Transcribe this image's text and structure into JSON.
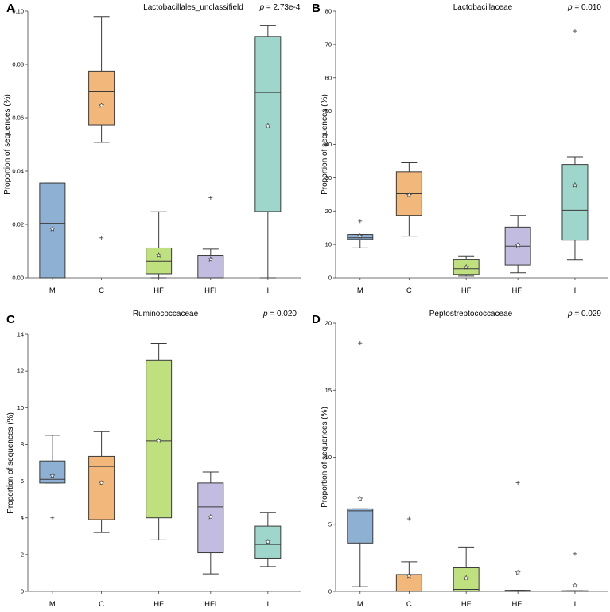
{
  "figure": {
    "categories": [
      "M",
      "C",
      "HF",
      "HFI",
      "I"
    ],
    "colors": {
      "M": "#8eb1d3",
      "C": "#f2b77a",
      "HF": "#bfe07f",
      "HFI": "#c2bce0",
      "I": "#9fd6cb"
    },
    "stroke": "#3a3a3a"
  },
  "chart_data": [
    {
      "type": "box",
      "panel": "A",
      "title": "Lactobacillales_unclassifield",
      "p_label": "p",
      "p_value": "= 2.73e-4",
      "ylabel": "Proportion of sequences (%)",
      "ylim": [
        0,
        0.1
      ],
      "yticks": [
        0,
        0.02,
        0.04,
        0.06,
        0.08,
        0.1
      ],
      "ytick_labels": [
        "0.00",
        "0.02",
        "0.04",
        "0.06",
        "0.08",
        "0.10"
      ],
      "categories": [
        "M",
        "C",
        "HF",
        "HFI",
        "I"
      ],
      "boxes": [
        {
          "name": "M",
          "whislo": 0.0,
          "q1": 0.0,
          "med": 0.0204,
          "q3": 0.0355,
          "whishi": 0.0355,
          "mean": 0.0183,
          "fliers": []
        },
        {
          "name": "C",
          "whislo": 0.0508,
          "q1": 0.0573,
          "med": 0.07,
          "q3": 0.0775,
          "whishi": 0.098,
          "mean": 0.0646,
          "fliers": [
            0.015
          ]
        },
        {
          "name": "HF",
          "whislo": 0.0,
          "q1": 0.0015,
          "med": 0.0062,
          "q3": 0.0112,
          "whishi": 0.0247,
          "mean": 0.0084,
          "fliers": []
        },
        {
          "name": "HFI",
          "whislo": 0.0,
          "q1": 0.0,
          "med": 0.0,
          "q3": 0.0082,
          "whishi": 0.0108,
          "mean": 0.0069,
          "fliers": [
            0.03
          ]
        },
        {
          "name": "I",
          "whislo": 0.0,
          "q1": 0.0248,
          "med": 0.0695,
          "q3": 0.0905,
          "whishi": 0.0945,
          "mean": 0.057,
          "fliers": []
        }
      ]
    },
    {
      "type": "box",
      "panel": "B",
      "title": "Lactobacillaceae",
      "p_label": "p",
      "p_value": "= 0.010",
      "ylabel": "Proportion of sequences (%)",
      "ylim": [
        0,
        80
      ],
      "yticks": [
        0,
        10,
        20,
        30,
        40,
        50,
        60,
        70,
        80
      ],
      "ytick_labels": [
        "0",
        "10",
        "20",
        "30",
        "40",
        "50",
        "60",
        "70",
        "80"
      ],
      "categories": [
        "M",
        "C",
        "HF",
        "HFI",
        "I"
      ],
      "boxes": [
        {
          "name": "M",
          "whislo": 9.0,
          "q1": 11.5,
          "med": 12.0,
          "q3": 13.0,
          "whishi": 13.0,
          "mean": 12.5,
          "fliers": [
            17.0
          ]
        },
        {
          "name": "C",
          "whislo": 12.5,
          "q1": 18.7,
          "med": 25.2,
          "q3": 31.8,
          "whishi": 34.5,
          "mean": 24.8,
          "fliers": []
        },
        {
          "name": "HF",
          "whislo": 0.5,
          "q1": 1.0,
          "med": 2.7,
          "q3": 5.4,
          "whishi": 6.4,
          "mean": 3.2,
          "fliers": []
        },
        {
          "name": "HFI",
          "whislo": 1.5,
          "q1": 3.8,
          "med": 9.5,
          "q3": 15.2,
          "whishi": 18.7,
          "mean": 9.8,
          "fliers": []
        },
        {
          "name": "I",
          "whislo": 5.3,
          "q1": 11.3,
          "med": 20.2,
          "q3": 34.0,
          "whishi": 36.3,
          "mean": 27.8,
          "fliers": [
            74.0
          ]
        }
      ]
    },
    {
      "type": "box",
      "panel": "C",
      "title": "Ruminococcaceae",
      "p_label": "p",
      "p_value": "= 0.020",
      "ylabel": "Proportion of sequences (%)",
      "ylim": [
        0,
        14
      ],
      "yticks": [
        0,
        2,
        4,
        6,
        8,
        10,
        12,
        14
      ],
      "ytick_labels": [
        "0",
        "2",
        "4",
        "6",
        "8",
        "10",
        "12",
        "14"
      ],
      "categories": [
        "M",
        "C",
        "HF",
        "HFI",
        "I"
      ],
      "boxes": [
        {
          "name": "M",
          "whislo": 5.9,
          "q1": 5.9,
          "med": 6.1,
          "q3": 7.1,
          "whishi": 8.5,
          "mean": 6.3,
          "fliers": [
            4.0
          ]
        },
        {
          "name": "C",
          "whislo": 3.2,
          "q1": 3.9,
          "med": 6.8,
          "q3": 7.35,
          "whishi": 8.7,
          "mean": 5.9,
          "fliers": []
        },
        {
          "name": "HF",
          "whislo": 2.8,
          "q1": 4.0,
          "med": 8.2,
          "q3": 12.6,
          "whishi": 13.5,
          "mean": 8.2,
          "fliers": []
        },
        {
          "name": "HFI",
          "whislo": 0.95,
          "q1": 2.1,
          "med": 4.6,
          "q3": 5.9,
          "whishi": 6.5,
          "mean": 4.05,
          "fliers": []
        },
        {
          "name": "I",
          "whislo": 1.35,
          "q1": 1.8,
          "med": 2.55,
          "q3": 3.55,
          "whishi": 4.3,
          "mean": 2.7,
          "fliers": []
        }
      ]
    },
    {
      "type": "box",
      "panel": "D",
      "title": "Peptostreptococcaceae",
      "p_label": "p",
      "p_value": "= 0.029",
      "ylabel": "Proportion of sequences (%)",
      "ylim": [
        0,
        20
      ],
      "yticks": [
        0,
        5,
        10,
        15,
        20
      ],
      "ytick_labels": [
        "0",
        "5",
        "10",
        "15",
        "20"
      ],
      "categories": [
        "M",
        "C",
        "HF",
        "HFI",
        "I"
      ],
      "boxes": [
        {
          "name": "M",
          "whislo": 0.35,
          "q1": 3.6,
          "med": 6.0,
          "q3": 6.15,
          "whishi": 6.15,
          "mean": 6.9,
          "fliers": [
            18.5
          ]
        },
        {
          "name": "C",
          "whislo": 0.0,
          "q1": 0.0,
          "med": 0.0,
          "q3": 1.25,
          "whishi": 2.2,
          "mean": 1.15,
          "fliers": [
            5.4
          ]
        },
        {
          "name": "HF",
          "whislo": 0.0,
          "q1": 0.0,
          "med": 0.15,
          "q3": 1.75,
          "whishi": 3.3,
          "mean": 1.0,
          "fliers": []
        },
        {
          "name": "HFI",
          "whislo": 0.0,
          "q1": 0.0,
          "med": 0.05,
          "q3": 0.08,
          "whishi": 0.08,
          "mean": 1.4,
          "fliers": [
            8.1
          ]
        },
        {
          "name": "I",
          "whislo": 0.0,
          "q1": 0.0,
          "med": 0.02,
          "q3": 0.05,
          "whishi": 0.05,
          "mean": 0.45,
          "fliers": [
            2.8
          ]
        }
      ]
    }
  ]
}
